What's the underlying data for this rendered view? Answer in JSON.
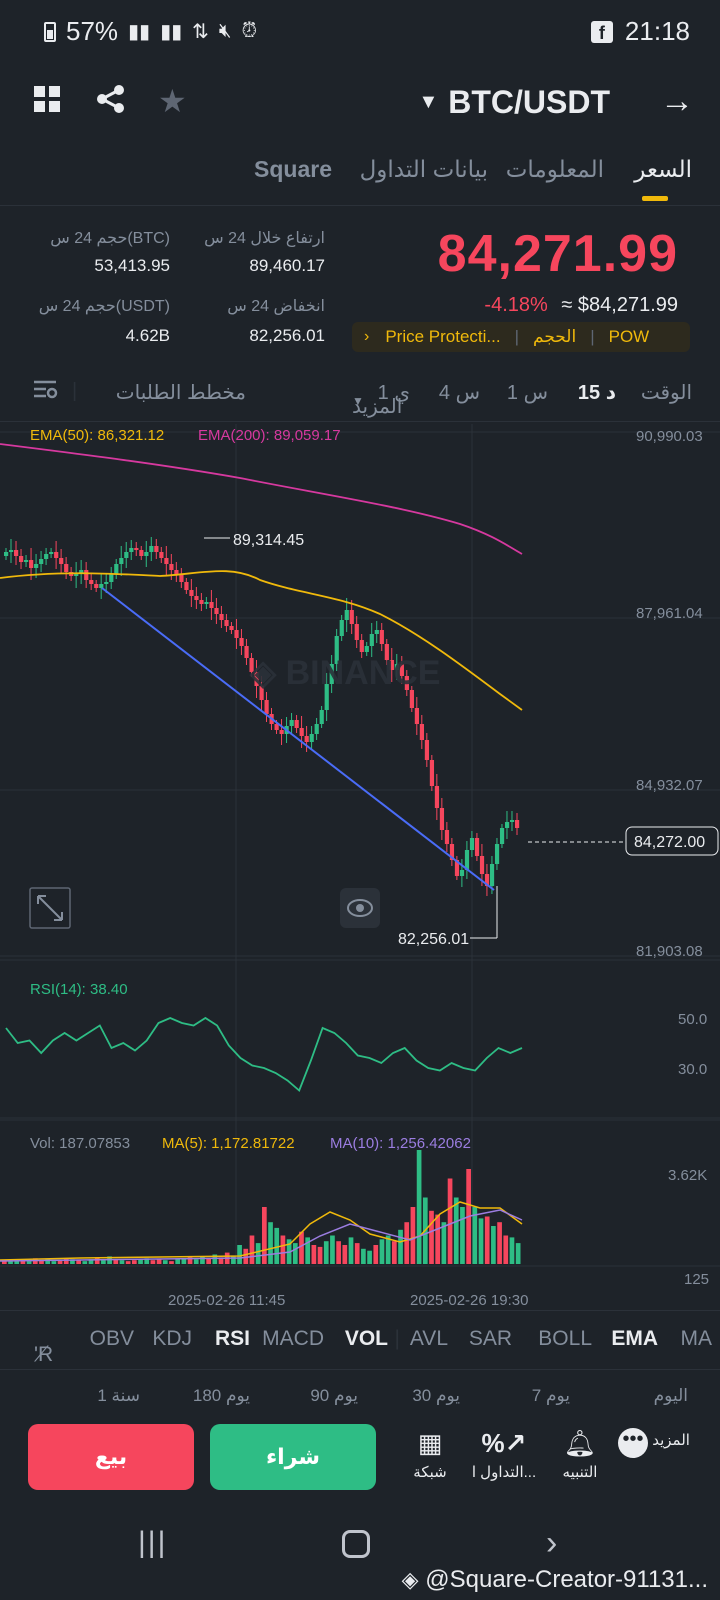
{
  "status_bar": {
    "battery": "57%",
    "time": "21:18"
  },
  "header": {
    "pair": "BTC/USDT"
  },
  "tabs": [
    {
      "label": "السعر"
    },
    {
      "label": "المعلومات"
    },
    {
      "label": "بيانات التداول"
    },
    {
      "label": "Square"
    }
  ],
  "price": {
    "last": "84,271.99",
    "change": "-4.18%",
    "usd": "≈ $84,271.99"
  },
  "stats": {
    "high_label": "ارتفاع خلال 24 س",
    "high_value": "89,460.17",
    "vol_btc_label": "حجم 24 س(BTC)",
    "vol_btc_value": "53,413.95",
    "low_label": "انخفاض 24 س",
    "low_value": "82,256.01",
    "vol_usdt_label": "حجم 24 س(USDT)",
    "vol_usdt_value": "4.62B"
  },
  "tags": [
    "POW",
    "الحجم",
    "Price Protecti..."
  ],
  "timeframes": {
    "time": "الوقت",
    "m15": "15 د",
    "h1": "1 س",
    "h4": "4 س",
    "d1": "1 ي",
    "more": "المزيد",
    "depth": "مخطط الطلبات"
  },
  "chart_data": [
    {
      "type": "candlestick",
      "title": "",
      "ema": [
        {
          "name": "EMA(50)",
          "label": "EMA(50): 86,321.12",
          "color": "#f0b90b"
        },
        {
          "name": "EMA(200)",
          "label": "EMA(200): 89,059.17",
          "color": "#d6399f"
        }
      ],
      "y_ticks": [
        "90,990.03",
        "87,961.04",
        "84,932.07",
        "81,903.08"
      ],
      "ylim": [
        81903.08,
        90990.03
      ],
      "annotations": {
        "high": "89,314.45",
        "low": "82,256.01",
        "last": "84,272.00"
      },
      "x_ticks": [
        "2025-02-26 11:45",
        "2025-02-26 19:30"
      ]
    },
    {
      "type": "line",
      "title": "",
      "label": "RSI(14): 38.40",
      "y_ticks": [
        "50.0",
        "30.0"
      ],
      "values": [
        46,
        40,
        41,
        36,
        41,
        44,
        41,
        44,
        47,
        38,
        40,
        37,
        41,
        48,
        50,
        48,
        47,
        50,
        47,
        39,
        34,
        31,
        30,
        28,
        25,
        21,
        33,
        46,
        44,
        40,
        35,
        34,
        32,
        36,
        38,
        33,
        30,
        29,
        32,
        30,
        29,
        34,
        38,
        36,
        38
      ]
    },
    {
      "type": "bar",
      "title": "",
      "vol_label": "Vol: 187.07853",
      "ma5_label": "MA(5): 1,172.81722",
      "ma10_label": "MA(10): 1,256.42062",
      "y_ticks": [
        "3.62K",
        "125"
      ]
    }
  ],
  "indicators": [
    "MA",
    "EMA",
    "BOLL",
    "SAR",
    "AVL",
    "VOL",
    "MACD",
    "RSI",
    "KDJ",
    "OBV",
    "'R"
  ],
  "ranges": [
    "اليوم",
    "7 يوم",
    "30 يوم",
    "90 يوم",
    "180 يوم",
    "1 سنة"
  ],
  "actions": [
    {
      "label": "المزيد"
    },
    {
      "label": "التنبيه"
    },
    {
      "label": "التداول ا..."
    },
    {
      "label": "شبكة"
    }
  ],
  "buttons": {
    "buy": "شراء",
    "sell": "بيع"
  },
  "watermark": "@Square-Creator-91131..."
}
